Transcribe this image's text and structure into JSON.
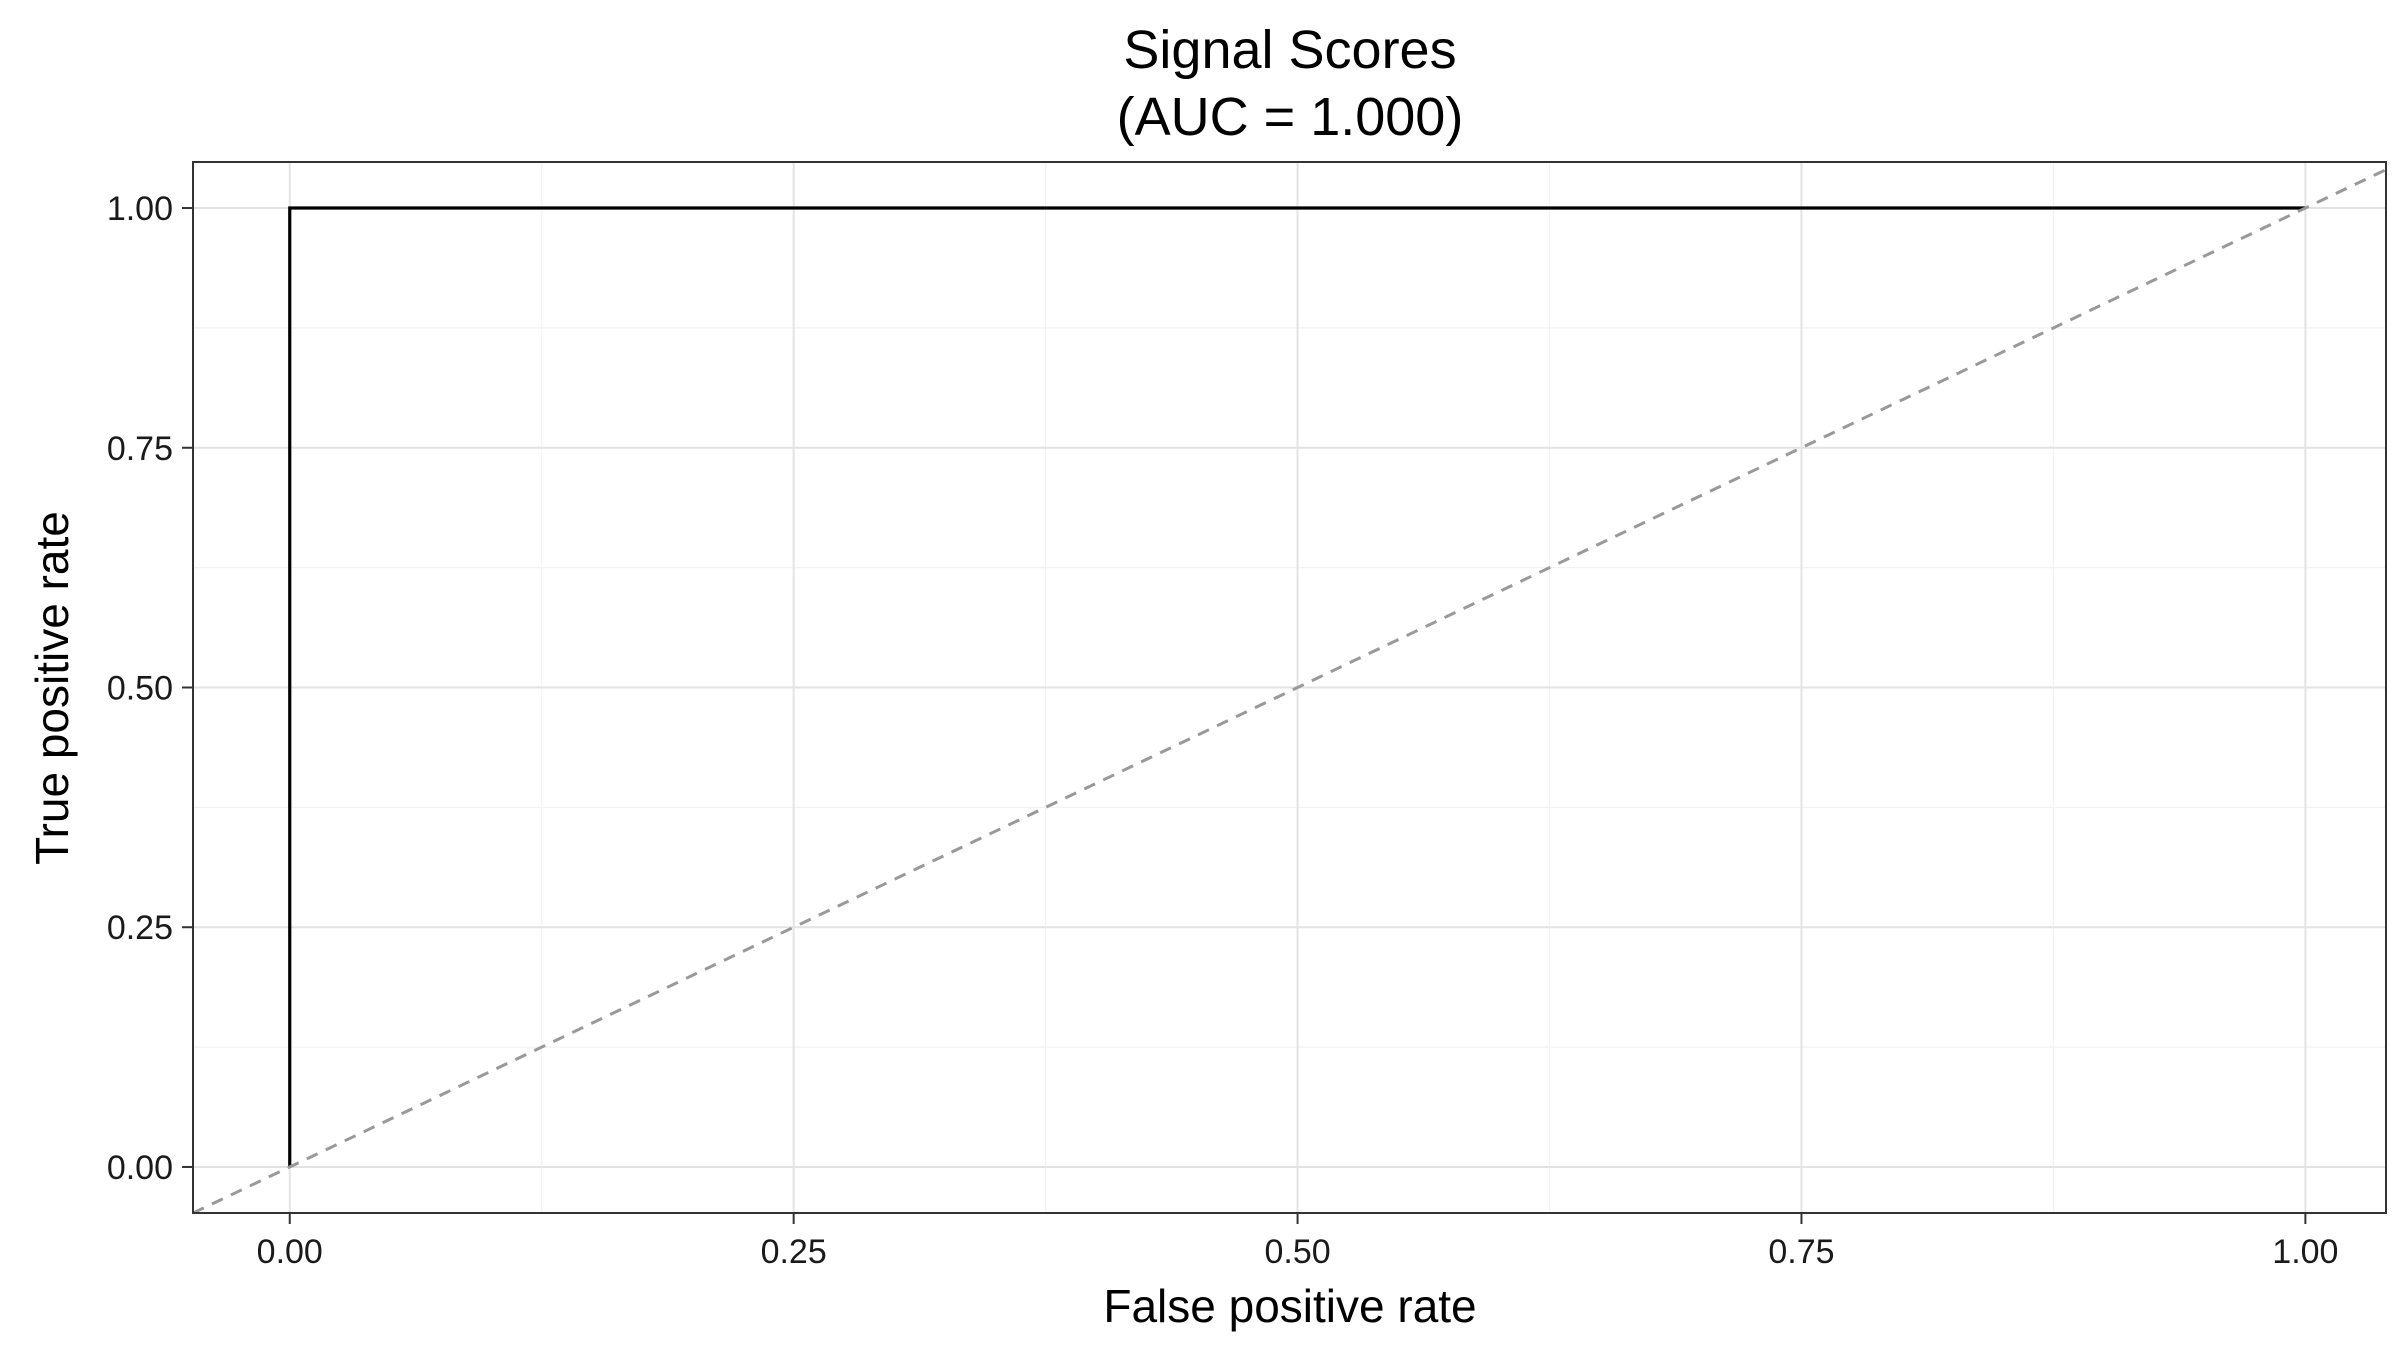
{
  "chart_data": {
    "type": "line",
    "title": "Signal Scores",
    "subtitle": "(AUC = 1.000)",
    "xlabel": "False positive rate",
    "ylabel": "True positive rate",
    "xlim": [
      -0.048,
      1.04
    ],
    "ylim": [
      -0.048,
      1.048
    ],
    "x_ticks": [
      0,
      0.25,
      0.5,
      0.75,
      1
    ],
    "y_ticks": [
      0,
      0.25,
      0.5,
      0.75,
      1
    ],
    "x_tick_labels": [
      "0.00",
      "0.25",
      "0.50",
      "0.75",
      "1.00"
    ],
    "y_tick_labels": [
      "0.00",
      "0.25",
      "0.50",
      "0.75",
      "1.00"
    ],
    "grid": true,
    "series": [
      {
        "line_style": "solid",
        "color": "#000000",
        "x": [
          0,
          0,
          1
        ],
        "y": [
          0,
          1,
          1
        ]
      },
      {
        "line_style": "dashed",
        "color": "#999999",
        "x": [
          -0.048,
          1.04
        ],
        "y": [
          -0.048,
          1.04
        ]
      }
    ]
  }
}
